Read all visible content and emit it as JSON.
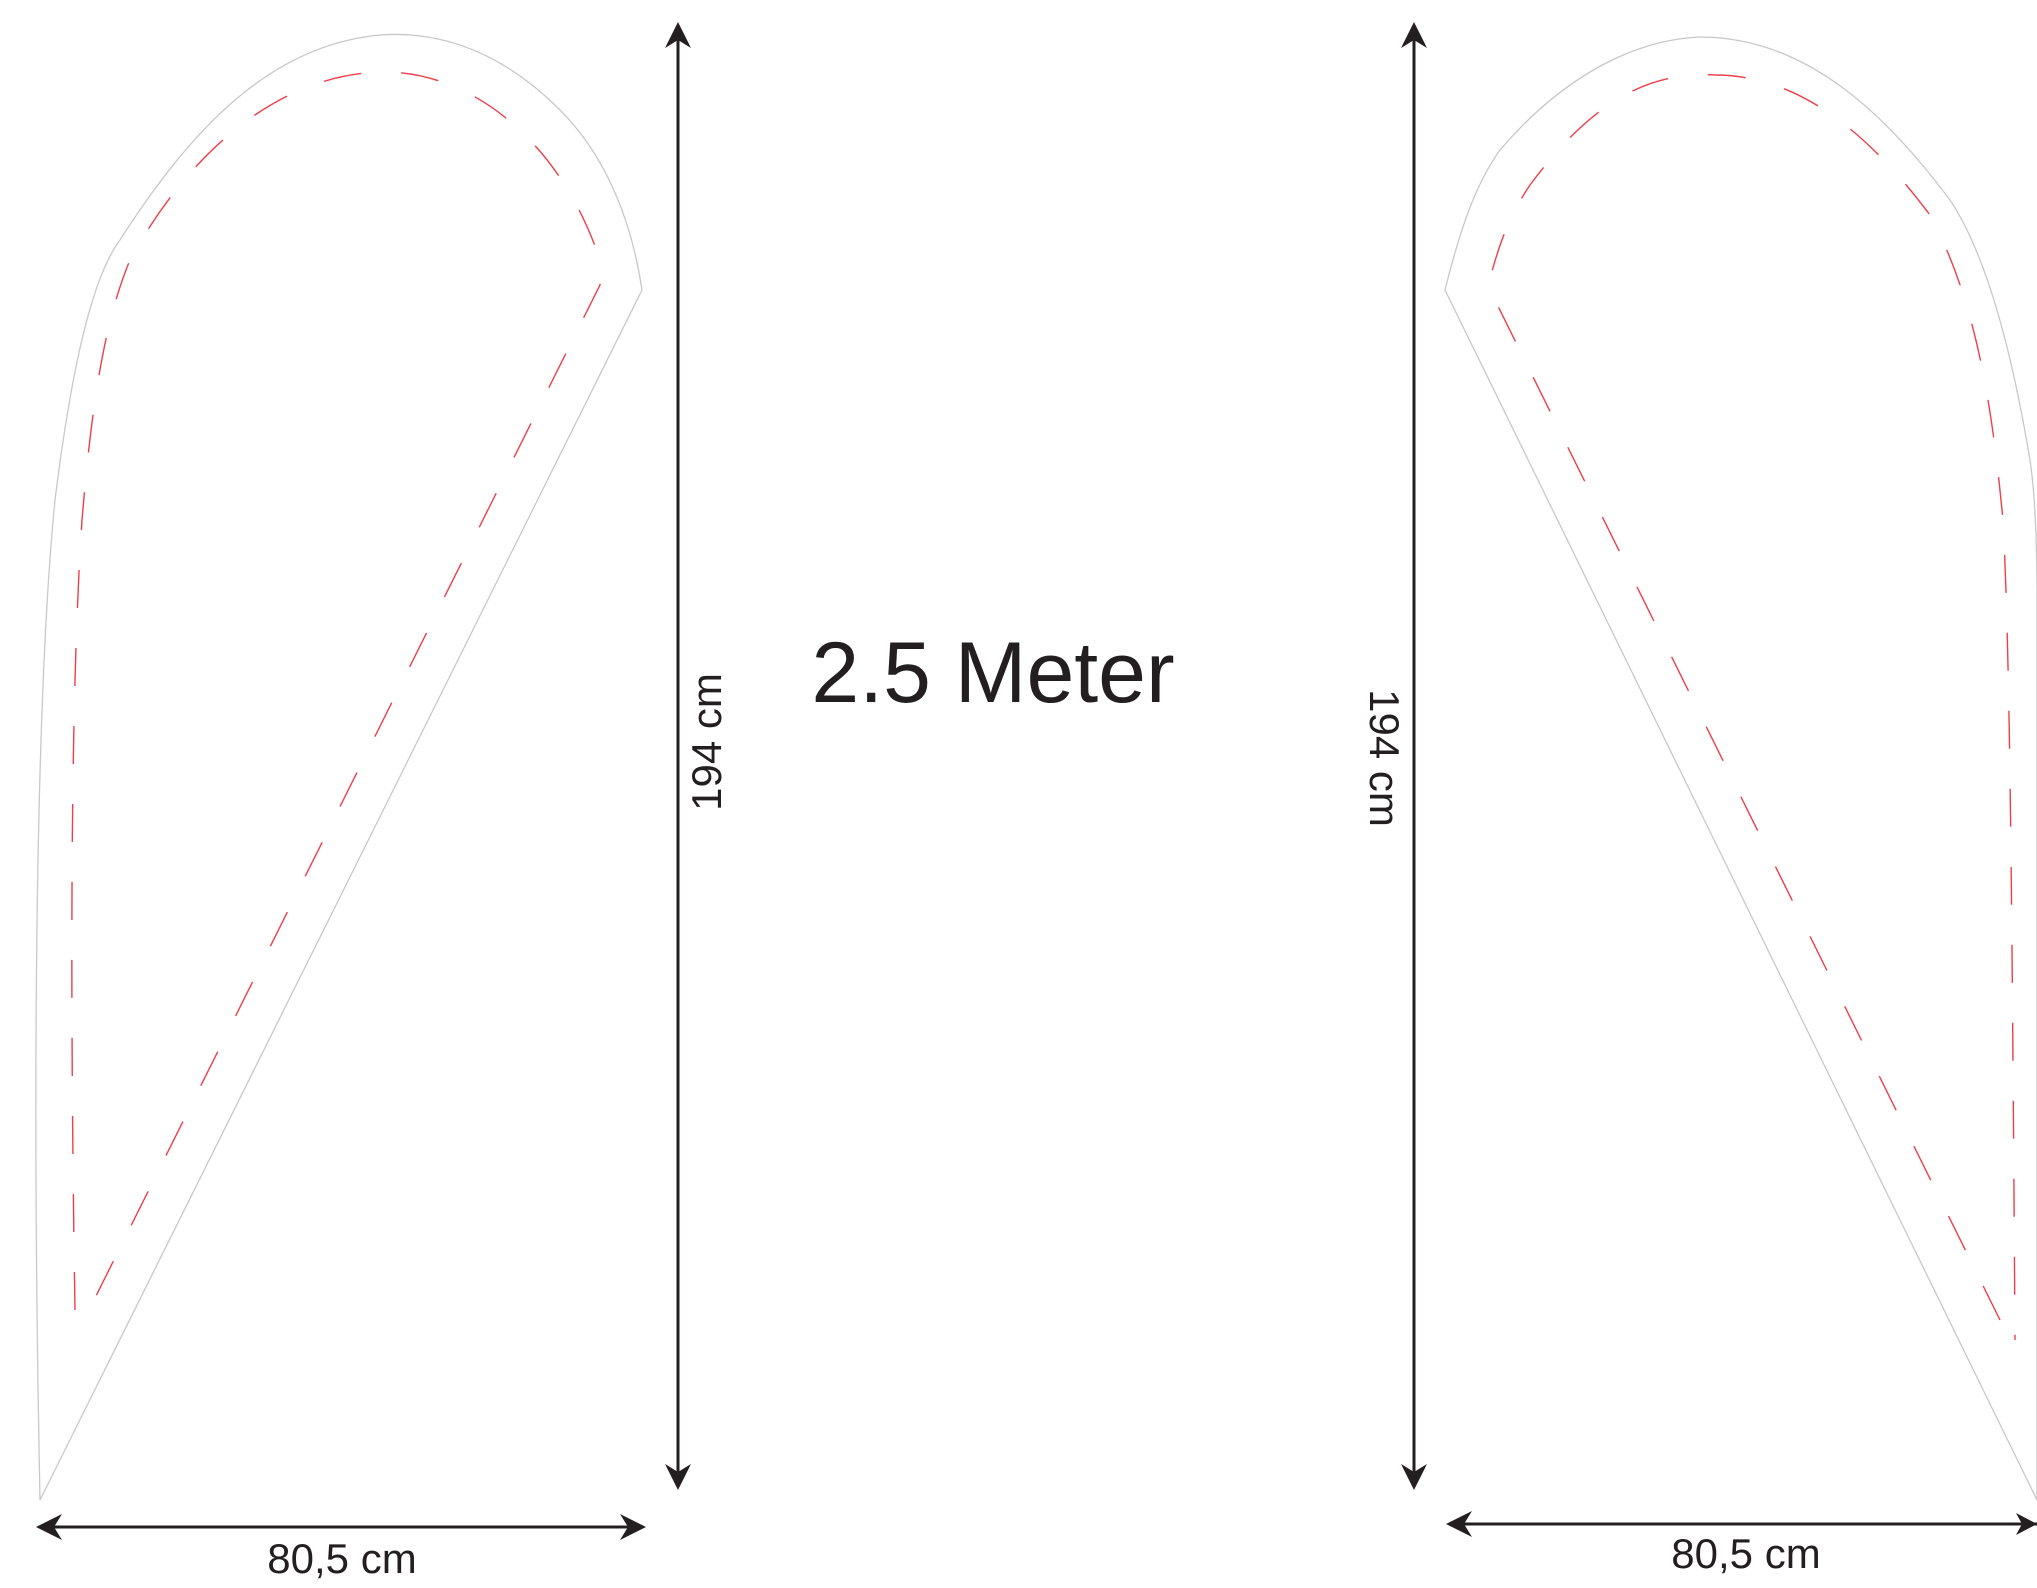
{
  "title": "2.5 Meter",
  "left_flag": {
    "height_label": "194 cm",
    "width_label": "80,5 cm"
  },
  "right_flag": {
    "height_label": "194 cm",
    "width_label": "80,5 cm"
  },
  "colors": {
    "outline": "#c8c8c8",
    "seam": "#ef3e4a",
    "dimension": "#231f20",
    "background": "#ffffff"
  }
}
